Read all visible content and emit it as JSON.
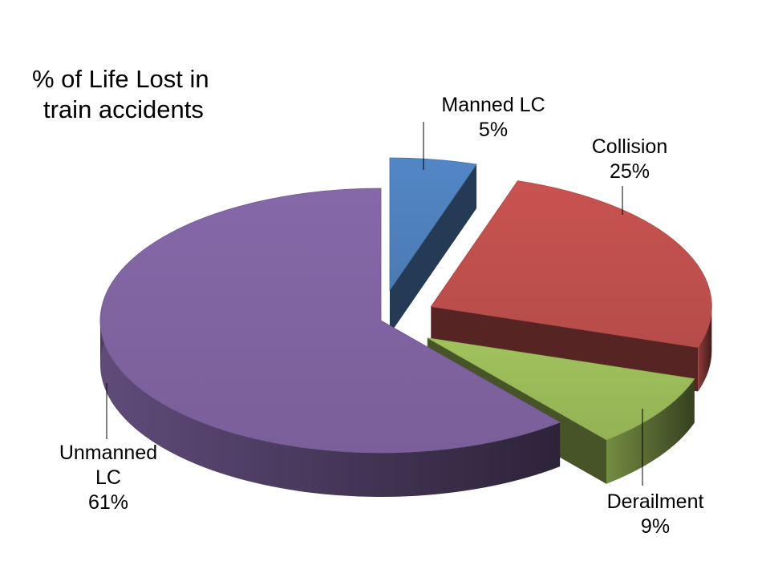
{
  "chart_data": {
    "type": "pie",
    "title_lines": [
      "% of Life Lost in",
      "train accidents"
    ],
    "slices": [
      {
        "name_lines": [
          "Manned LC"
        ],
        "label": "Manned LC",
        "value": 5,
        "value_label": "5%",
        "color": "#4f81bd",
        "exploded": true
      },
      {
        "name_lines": [
          "Collision"
        ],
        "label": "Collision",
        "value": 25,
        "value_label": "25%",
        "color": "#c0504d",
        "exploded": true
      },
      {
        "name_lines": [
          "Derailment"
        ],
        "label": "Derailment",
        "value": 9,
        "value_label": "9%",
        "color": "#9bbb59",
        "exploded": true
      },
      {
        "name_lines": [
          "Unmanned",
          "LC"
        ],
        "label": "Unmanned LC",
        "value": 61,
        "value_label": "61%",
        "color": "#8064a2",
        "exploded": false
      }
    ],
    "unit": "%",
    "style": "3d-exploded-pie"
  }
}
